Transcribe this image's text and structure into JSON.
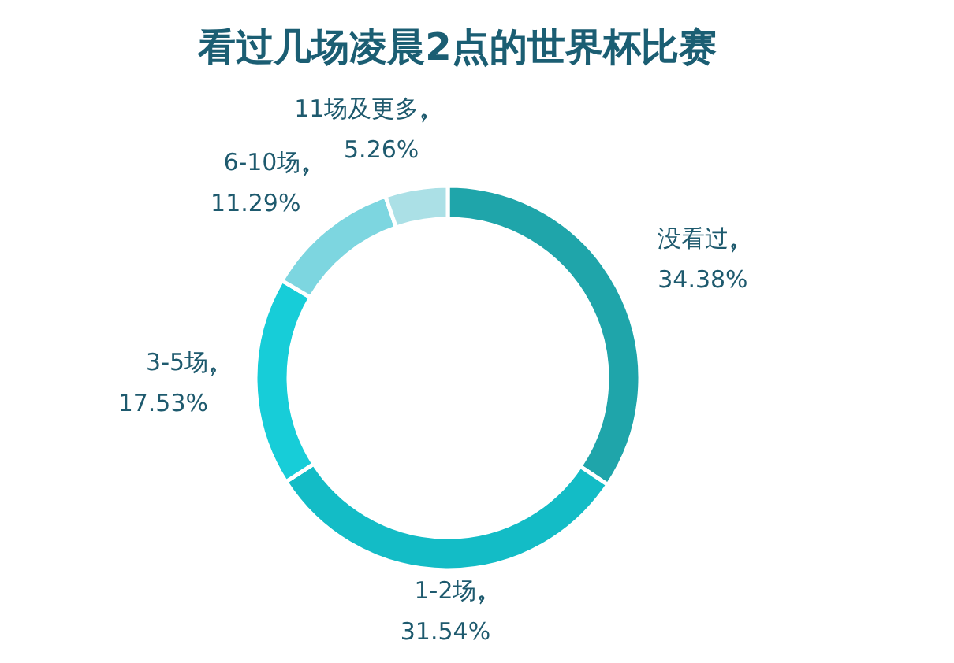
{
  "chart_data": {
    "type": "donut",
    "title": "看过几场凌晨2点的世界杯比赛",
    "categories": [
      "没看过",
      "1-2场",
      "3-5场",
      "6-10场",
      "11场及更多"
    ],
    "values": [
      34.38,
      31.54,
      17.53,
      11.29,
      5.26
    ],
    "value_labels": [
      "34.38%",
      "31.54%",
      "17.53%",
      "11.29%",
      "5.26%"
    ],
    "colors": [
      "#1fa5aa",
      "#13bcc6",
      "#17cdd8",
      "#7dd6e0",
      "#abe0e6"
    ]
  }
}
